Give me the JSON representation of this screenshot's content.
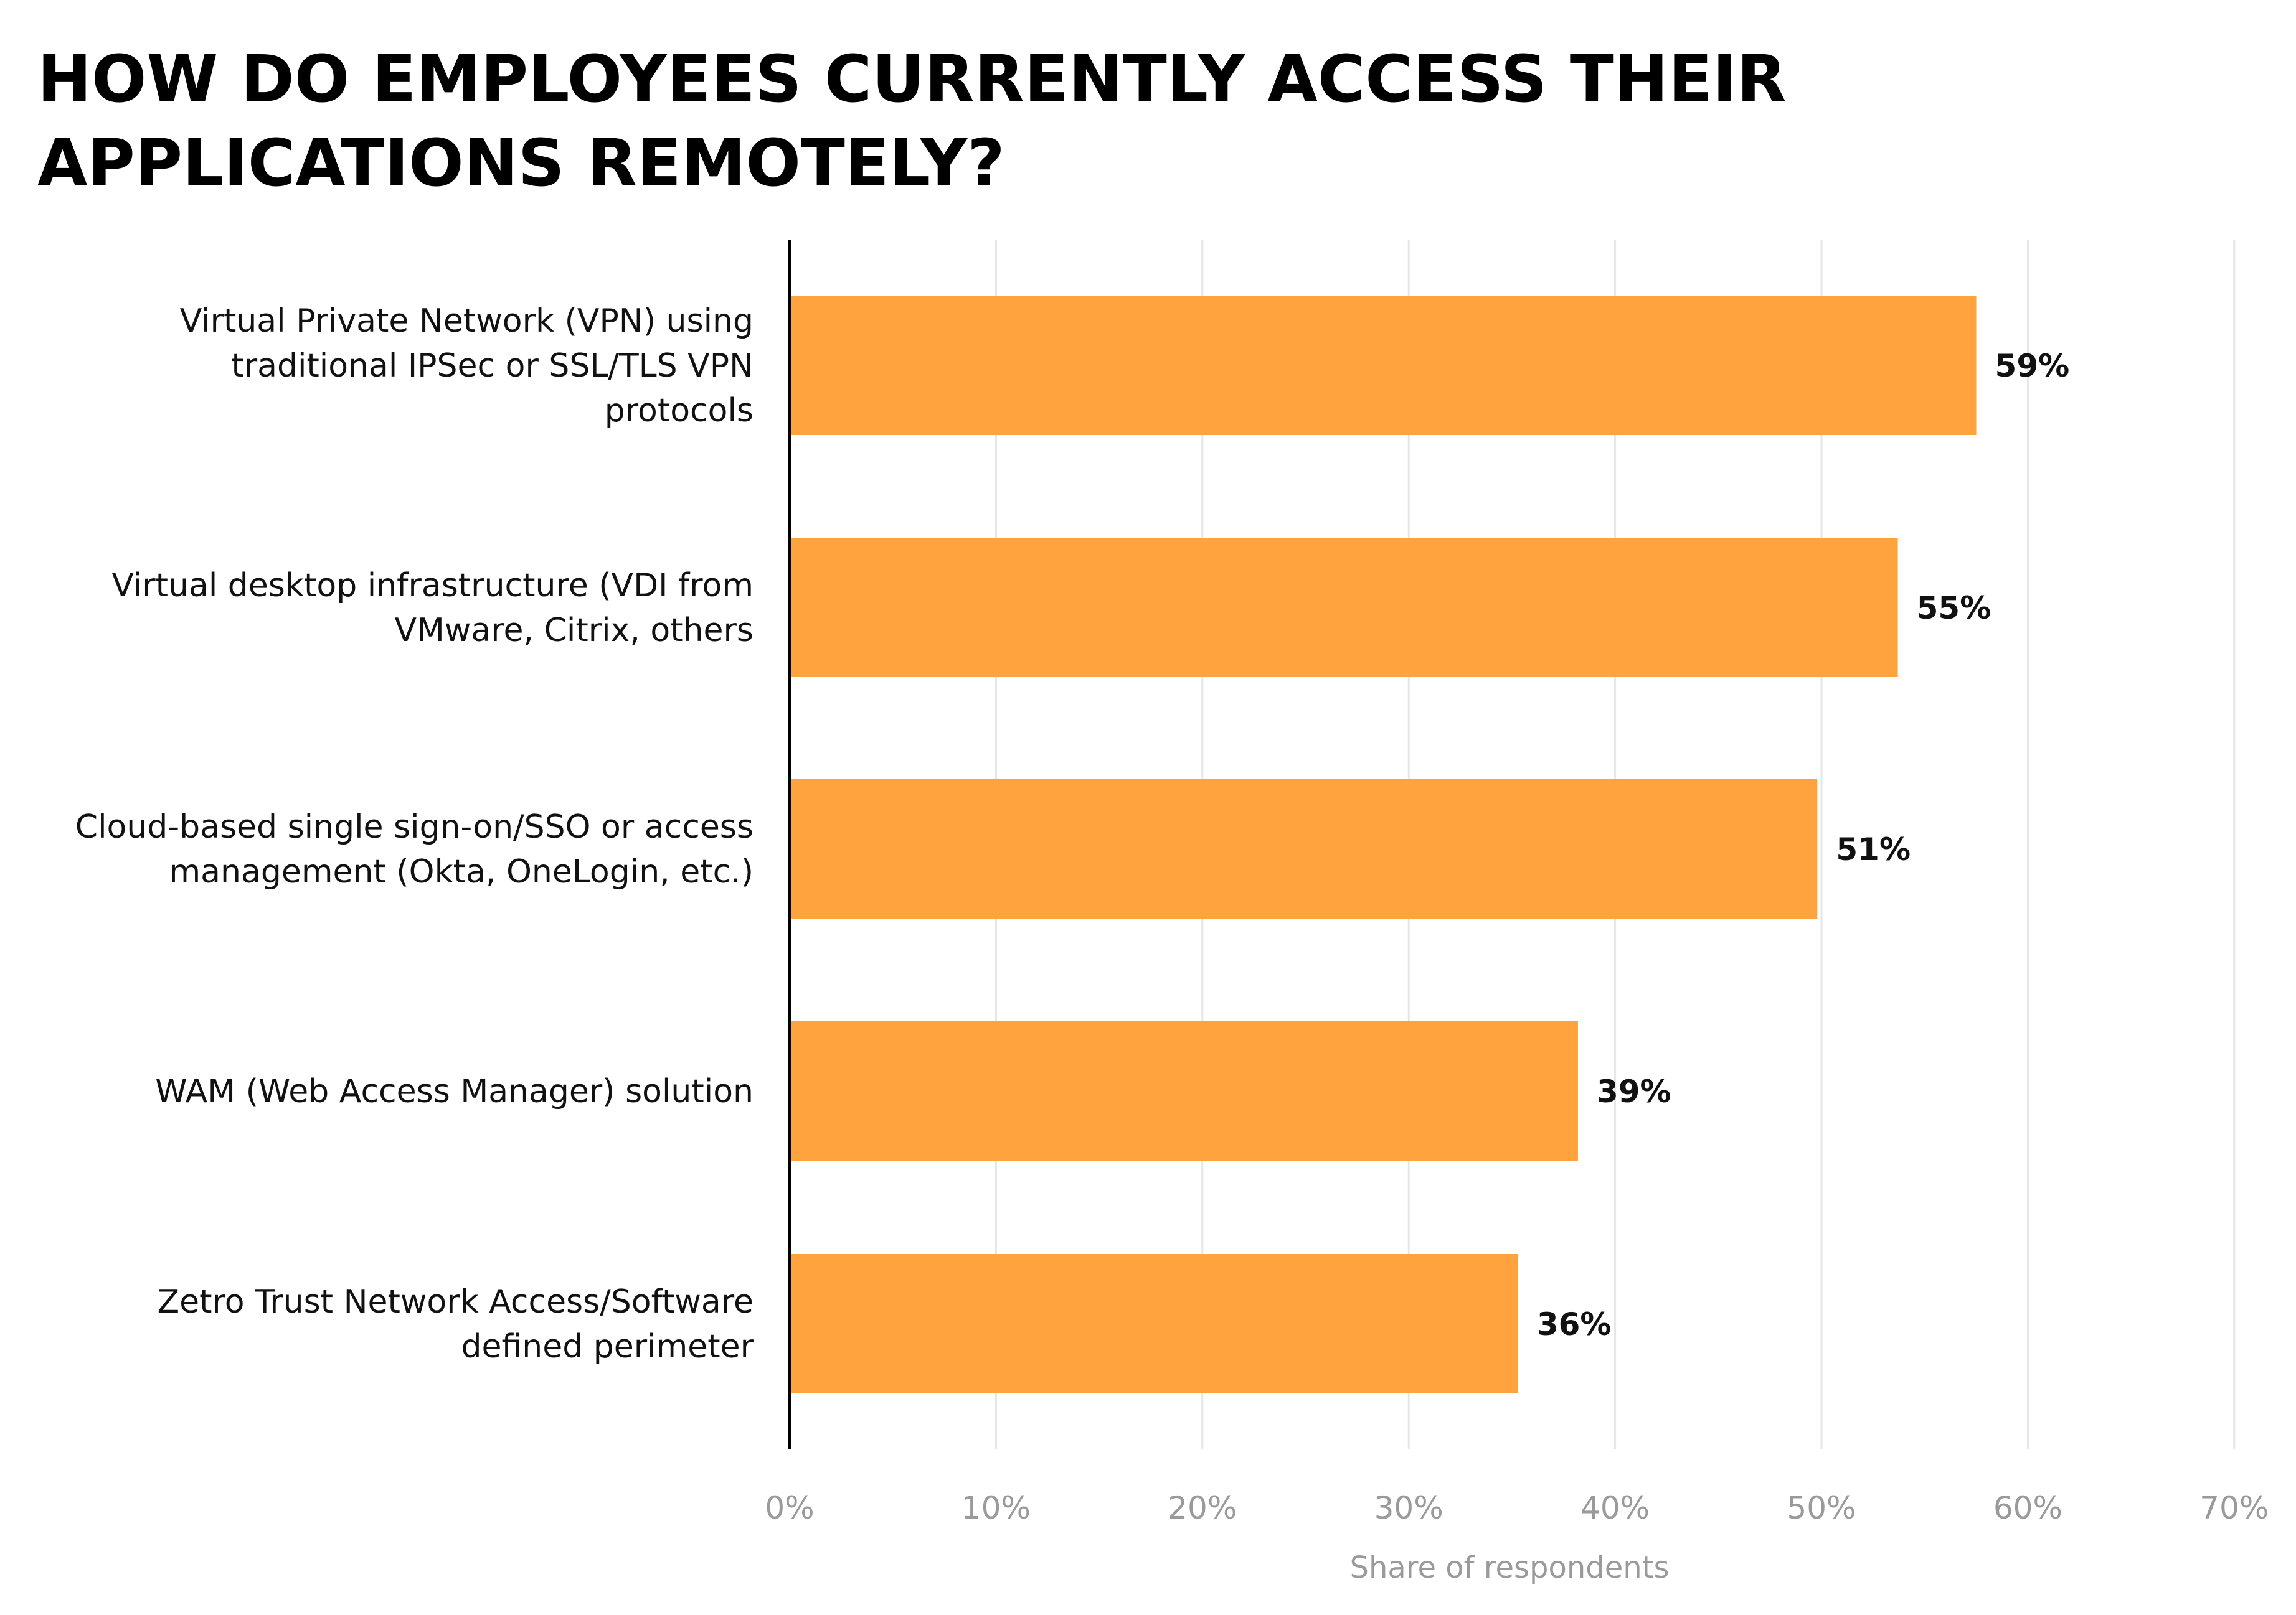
{
  "chart_data": {
    "type": "bar",
    "orientation": "horizontal",
    "title_lines": [
      "HOW DO EMPLOYEES CURRENTLY ACCESS THEIR",
      "APPLICATIONS REMOTELY?"
    ],
    "xlabel": "Share of respondents",
    "xlim": [
      0,
      70
    ],
    "xticks": [
      0,
      10,
      20,
      30,
      40,
      50,
      60,
      70
    ],
    "xtick_labels": [
      "0%",
      "10%",
      "20%",
      "30%",
      "40%",
      "50%",
      "60%",
      "70%"
    ],
    "grid": "vertical",
    "bar_color": "#FFA33F",
    "gridline_color": "#e6e6e6",
    "categories": [
      [
        "Virtual Private Network (VPN) using",
        "traditional IPSec or SSL/TLS VPN",
        "protocols"
      ],
      [
        "Virtual desktop infrastructure (VDI from",
        "VMware, Citrix, others"
      ],
      [
        "Cloud-based single sign-on/SSO or access",
        "management (Okta, OneLogin, etc.)"
      ],
      [
        "WAM (Web Access Manager) solution"
      ],
      [
        "Zetro Trust Network Access/Software",
        "defined perimeter"
      ]
    ],
    "values": [
      59,
      55,
      51,
      39,
      36
    ],
    "value_labels": [
      "59%",
      "55%",
      "51%",
      "39%",
      "36%"
    ]
  }
}
